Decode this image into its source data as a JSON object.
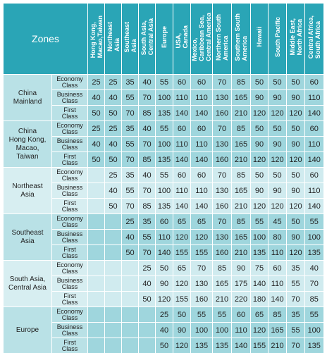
{
  "header": {
    "zones_label": "Zones",
    "columns": [
      "Hong Kong,\nMacao,Taiwan",
      "Northeast\nAsia",
      "Southeast\nAsia",
      "South Asia,\nCentral Asia",
      "Europe",
      "USA,\nCanada",
      "Mexico,\nCaribbean Sea,\nCentral America",
      "Northern South\nAmerica",
      "Southern South\nAmerica",
      "Hawaii",
      "South Pacific",
      "Middle East,\nNorth Africa",
      "Central Africa,\nSouth Africa"
    ]
  },
  "classes": [
    "Economy\nClass",
    "Business\nClass",
    "First\nClass"
  ],
  "rows": [
    {
      "region": "China\nMainland",
      "band": 0,
      "values": [
        [
          "25",
          "25",
          "35",
          "40",
          "55",
          "60",
          "60",
          "70",
          "85",
          "50",
          "50",
          "50",
          "60"
        ],
        [
          "40",
          "40",
          "55",
          "70",
          "100",
          "110",
          "110",
          "130",
          "165",
          "90",
          "90",
          "90",
          "110"
        ],
        [
          "50",
          "50",
          "70",
          "85",
          "135",
          "140",
          "140",
          "160",
          "210",
          "120",
          "120",
          "120",
          "140"
        ]
      ]
    },
    {
      "region": "China\nHong Kong,\nMacao,\nTaiwan",
      "band": 0,
      "values": [
        [
          "25",
          "25",
          "35",
          "40",
          "55",
          "60",
          "60",
          "70",
          "85",
          "50",
          "50",
          "50",
          "60"
        ],
        [
          "40",
          "40",
          "55",
          "70",
          "100",
          "110",
          "110",
          "130",
          "165",
          "90",
          "90",
          "90",
          "110"
        ],
        [
          "50",
          "50",
          "70",
          "85",
          "135",
          "140",
          "140",
          "160",
          "210",
          "120",
          "120",
          "120",
          "140"
        ]
      ]
    },
    {
      "region": "Northeast\nAsia",
      "band": 1,
      "values": [
        [
          "",
          "25",
          "35",
          "40",
          "55",
          "60",
          "60",
          "70",
          "85",
          "50",
          "50",
          "50",
          "60"
        ],
        [
          "",
          "40",
          "55",
          "70",
          "100",
          "110",
          "110",
          "130",
          "165",
          "90",
          "90",
          "90",
          "110"
        ],
        [
          "",
          "50",
          "70",
          "85",
          "135",
          "140",
          "140",
          "160",
          "210",
          "120",
          "120",
          "120",
          "140"
        ]
      ]
    },
    {
      "region": "Southeast\nAsia",
      "band": 0,
      "values": [
        [
          "",
          "",
          "25",
          "35",
          "60",
          "65",
          "65",
          "70",
          "85",
          "55",
          "45",
          "50",
          "55"
        ],
        [
          "",
          "",
          "40",
          "55",
          "110",
          "120",
          "120",
          "130",
          "165",
          "100",
          "80",
          "90",
          "100"
        ],
        [
          "",
          "",
          "50",
          "70",
          "140",
          "155",
          "155",
          "160",
          "210",
          "135",
          "110",
          "120",
          "135"
        ]
      ]
    },
    {
      "region": "South Asia,\nCentral Asia",
      "band": 1,
      "values": [
        [
          "",
          "",
          "",
          "25",
          "50",
          "65",
          "70",
          "85",
          "90",
          "75",
          "60",
          "35",
          "40"
        ],
        [
          "",
          "",
          "",
          "40",
          "90",
          "120",
          "130",
          "165",
          "175",
          "140",
          "110",
          "55",
          "70"
        ],
        [
          "",
          "",
          "",
          "50",
          "120",
          "155",
          "160",
          "210",
          "220",
          "180",
          "140",
          "70",
          "85"
        ]
      ]
    },
    {
      "region": "Europe",
      "band": 0,
      "values": [
        [
          "",
          "",
          "",
          "",
          "25",
          "50",
          "55",
          "55",
          "60",
          "65",
          "85",
          "35",
          "55"
        ],
        [
          "",
          "",
          "",
          "",
          "40",
          "90",
          "100",
          "100",
          "110",
          "120",
          "165",
          "55",
          "100"
        ],
        [
          "",
          "",
          "",
          "",
          "50",
          "120",
          "135",
          "135",
          "140",
          "155",
          "210",
          "70",
          "135"
        ]
      ]
    }
  ]
}
